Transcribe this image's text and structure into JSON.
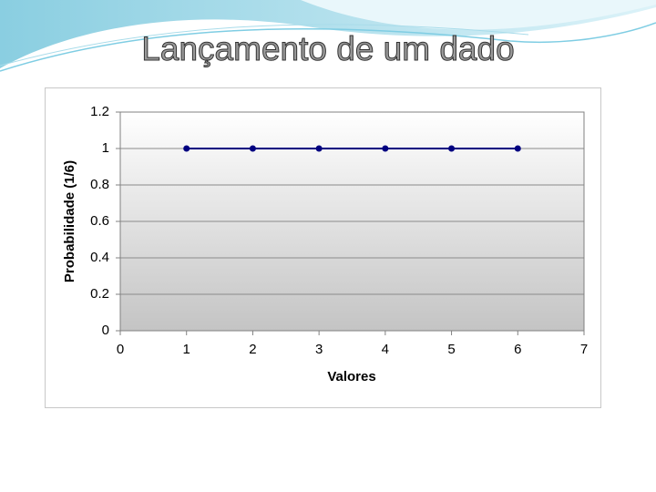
{
  "chart_data": {
    "type": "line",
    "title": "Lançamento de um dado",
    "x": [
      1,
      2,
      3,
      4,
      5,
      6
    ],
    "values": [
      1,
      1,
      1,
      1,
      1,
      1
    ],
    "color": "#000080",
    "xlim": [
      0,
      7
    ],
    "xticks": [
      0,
      1,
      2,
      3,
      4,
      5,
      6,
      7
    ],
    "ylim": [
      0,
      1.2
    ],
    "yticks": [
      0,
      0.2,
      0.4,
      0.6,
      0.8,
      1,
      1.2
    ],
    "xlabel": "Valores",
    "ylabel": "Probabilidade (1/6)",
    "grid": true
  }
}
